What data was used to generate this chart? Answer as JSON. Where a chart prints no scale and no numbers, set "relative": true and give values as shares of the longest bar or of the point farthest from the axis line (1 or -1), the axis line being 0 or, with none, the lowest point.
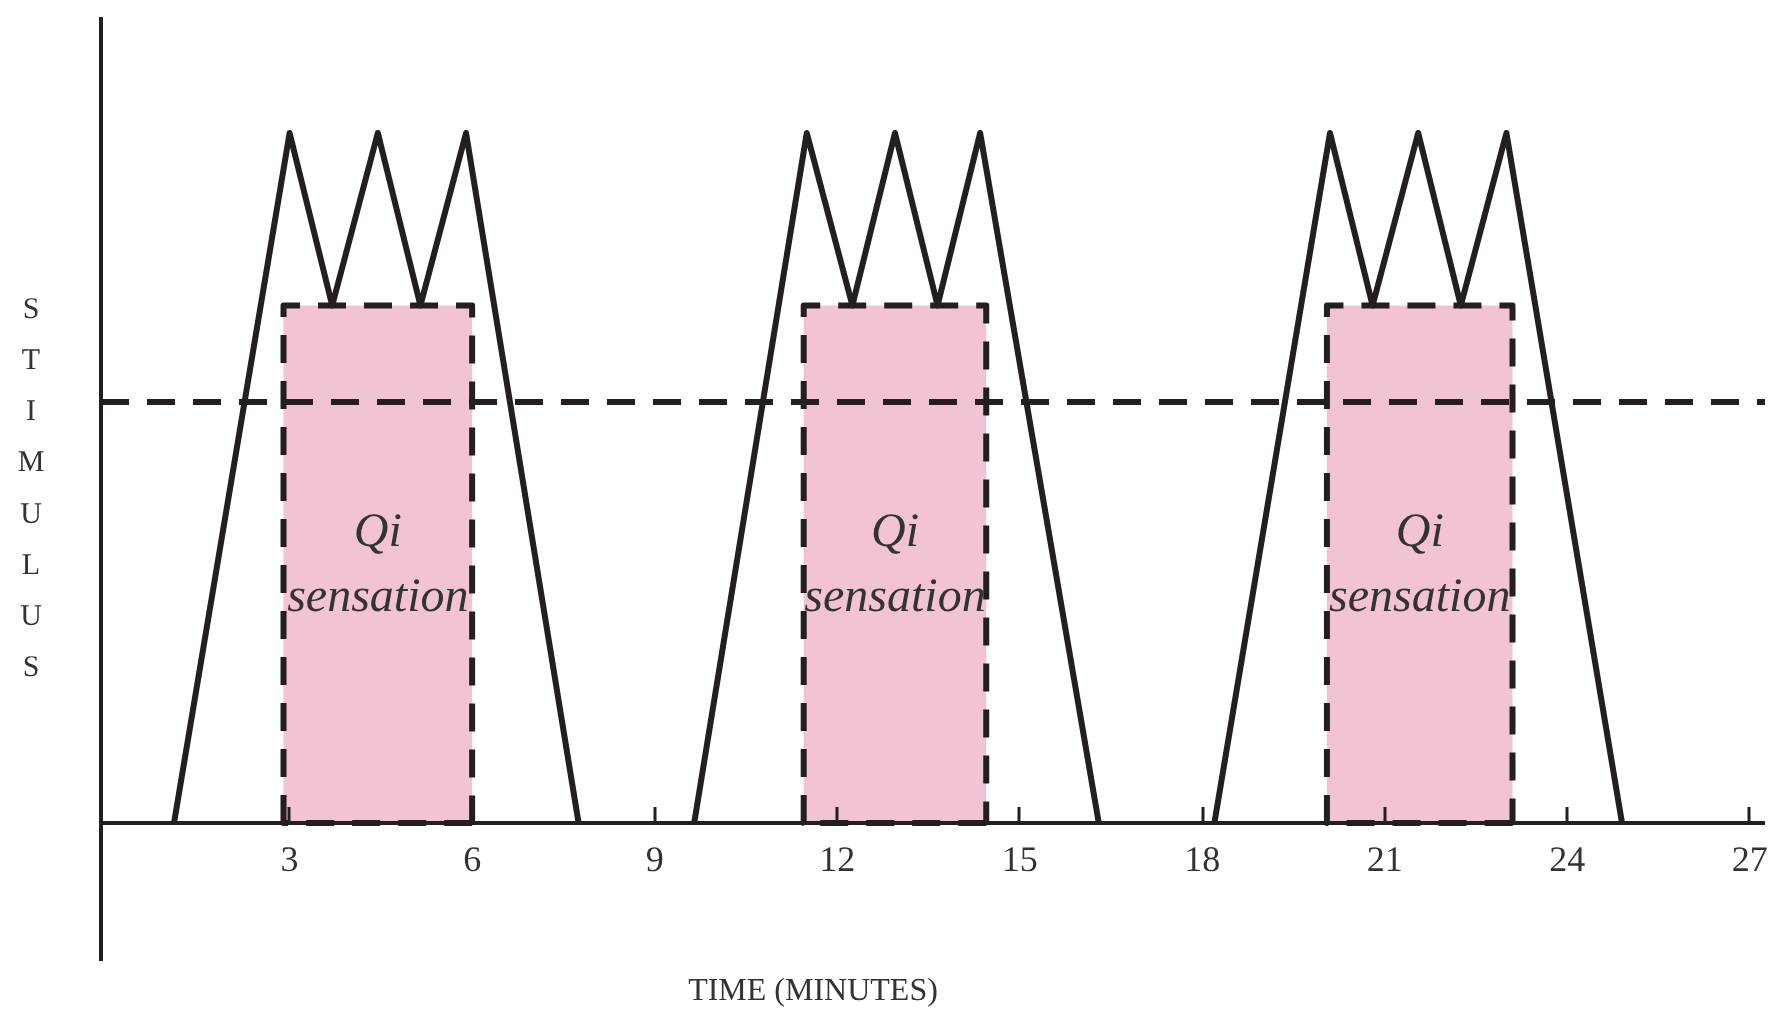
{
  "chart_data": {
    "type": "line",
    "relative": true,
    "xlabel": "TIME (MINUTES)",
    "ylabel": "STIMULUS",
    "xlim": [
      -0.1,
      27.25
    ],
    "xticks": [
      3,
      6,
      9,
      12,
      15,
      18,
      21,
      24,
      27
    ],
    "ref_lines": [
      {
        "axis": "y",
        "value": 0.61,
        "color": "#231f20",
        "line_style": "dashed"
      }
    ],
    "series": [
      {
        "type": "area",
        "name": "Qi sensation",
        "color": "#f1c3d4",
        "line_style": "dashed",
        "x": [
          2.9,
          2.9,
          6.0,
          6.0
        ],
        "values": [
          0,
          0.75,
          0.75,
          0
        ]
      },
      {
        "type": "area",
        "name": "Qi sensation",
        "color": "#f1c3d4",
        "line_style": "dashed",
        "x": [
          11.45,
          11.45,
          14.45,
          14.45
        ],
        "values": [
          0,
          0.75,
          0.75,
          0
        ]
      },
      {
        "type": "area",
        "name": "Qi sensation",
        "color": "#f1c3d4",
        "line_style": "dashed",
        "x": [
          20.05,
          20.05,
          23.1,
          23.1
        ],
        "values": [
          0,
          0.75,
          0.75,
          0
        ]
      },
      {
        "color": "#231f20",
        "x": [
          1.1,
          3.0,
          3.7,
          4.45,
          5.15,
          5.9,
          7.75
        ],
        "values": [
          0,
          1,
          0.75,
          1,
          0.75,
          1,
          0
        ]
      },
      {
        "color": "#231f20",
        "x": [
          9.65,
          11.5,
          12.25,
          12.95,
          13.65,
          14.35,
          16.3
        ],
        "values": [
          0,
          1,
          0.75,
          1,
          0.75,
          1,
          0
        ]
      },
      {
        "color": "#231f20",
        "x": [
          18.2,
          20.1,
          20.8,
          21.55,
          22.25,
          23.0,
          24.9
        ],
        "values": [
          0,
          1,
          0.75,
          1,
          0.75,
          1,
          0
        ]
      }
    ]
  }
}
